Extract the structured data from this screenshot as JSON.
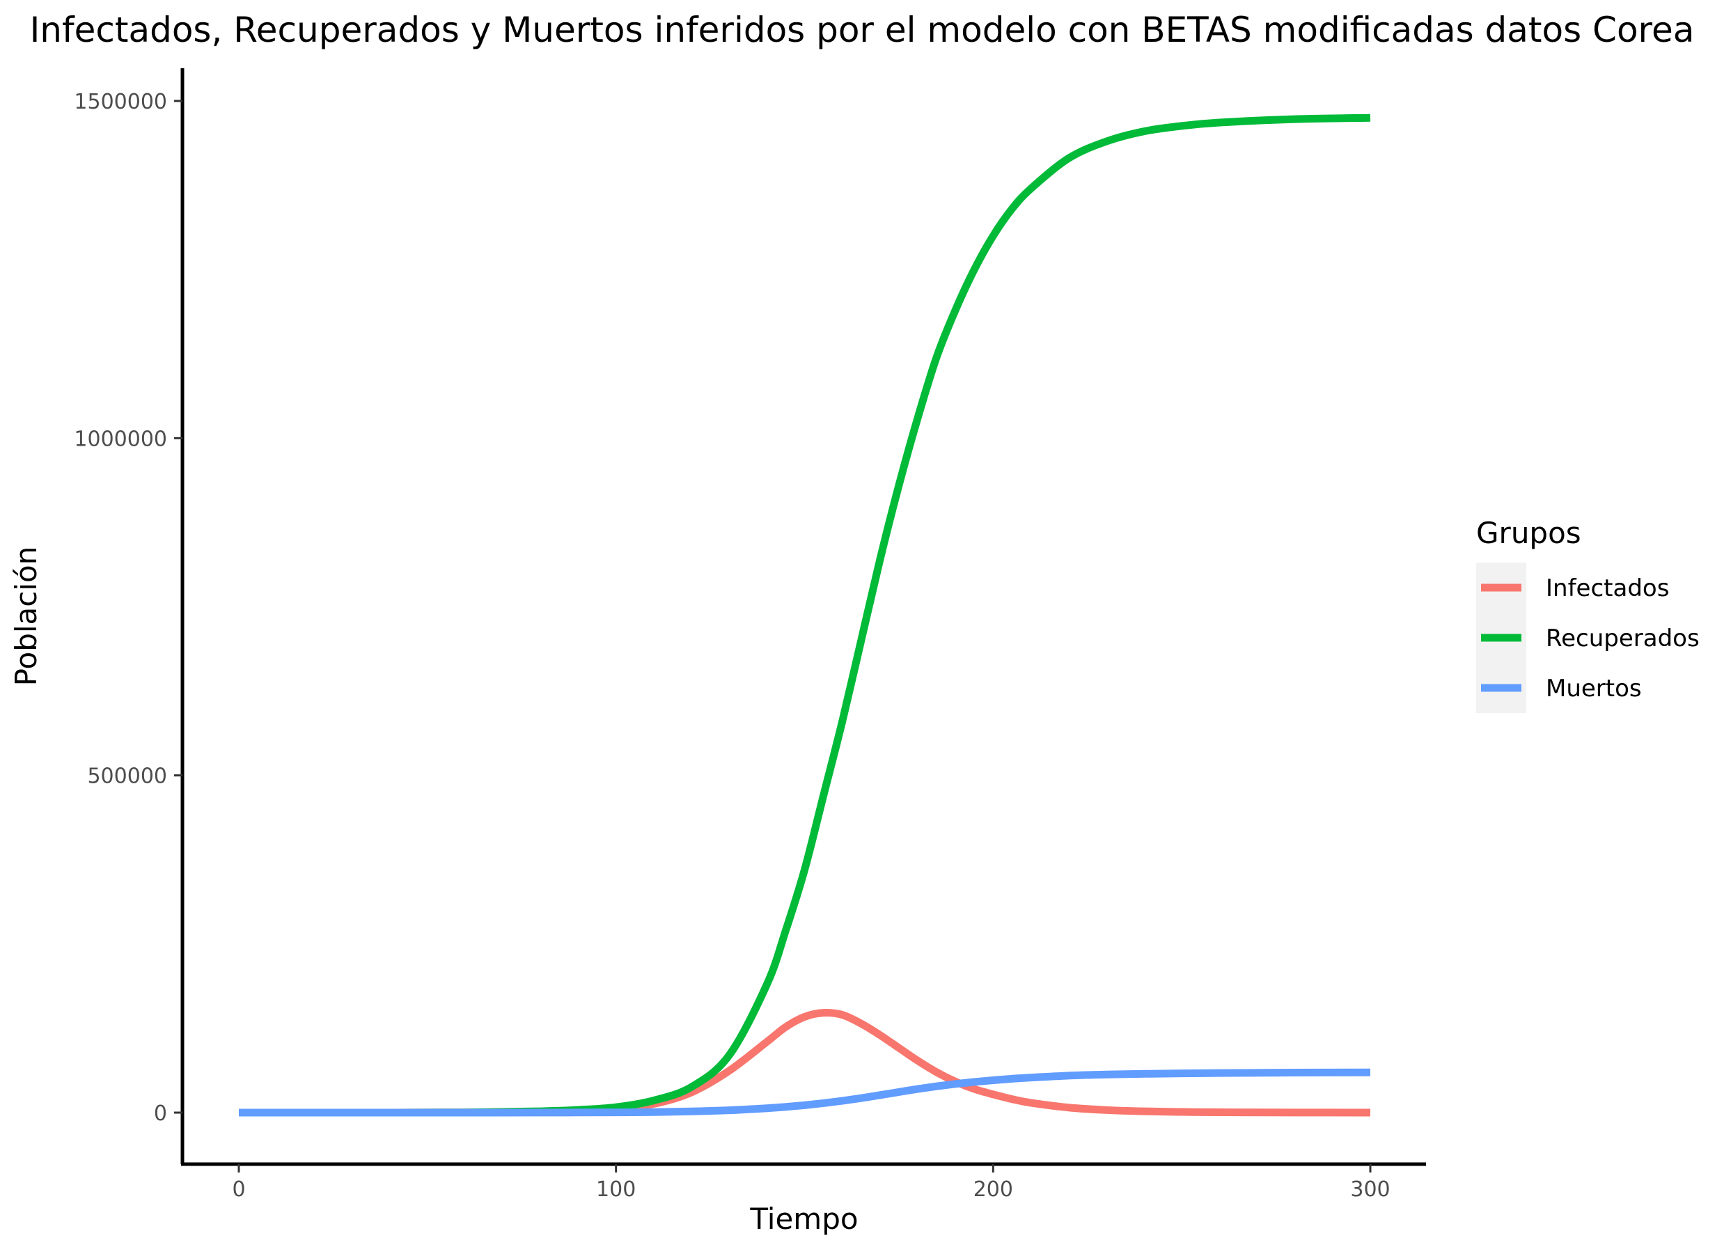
{
  "chart_data": {
    "type": "line",
    "title": "Infectados, Recuperados y Muertos inferidos por el modelo con BETAS modificadas datos Corea",
    "xlabel": "Tiempo",
    "ylabel": "Población",
    "xlim": [
      0,
      300
    ],
    "ylim": [
      0,
      1500000
    ],
    "x_ticks": [
      0,
      100,
      200,
      300
    ],
    "y_ticks": [
      0,
      500000,
      1000000,
      1500000
    ],
    "x_tick_labels": [
      "0",
      "100",
      "200",
      "300"
    ],
    "y_tick_labels": [
      "0",
      "500000",
      "1000000",
      "1500000"
    ],
    "grid": false,
    "legend": {
      "title": "Grupos",
      "position": "right"
    },
    "x": [
      0,
      20,
      40,
      60,
      80,
      90,
      100,
      110,
      120,
      130,
      140,
      145,
      150,
      155,
      160,
      165,
      170,
      175,
      180,
      185,
      190,
      195,
      200,
      205,
      210,
      220,
      230,
      240,
      250,
      260,
      280,
      300
    ],
    "series": [
      {
        "name": "Infectados",
        "color": "#F8766D",
        "values": [
          0,
          0,
          0,
          300,
          1500,
          3000,
          6500,
          13000,
          30000,
          62000,
          105000,
          127000,
          142000,
          148000,
          145000,
          132000,
          115000,
          96000,
          77000,
          60000,
          46000,
          35000,
          27000,
          20000,
          14500,
          7500,
          3800,
          1900,
          1000,
          500,
          150,
          50
        ]
      },
      {
        "name": "Recuperados",
        "color": "#00BA38",
        "values": [
          0,
          0,
          0,
          300,
          2000,
          4000,
          8000,
          18000,
          38000,
          85000,
          190000,
          270000,
          360000,
          470000,
          580000,
          700000,
          820000,
          930000,
          1030000,
          1120000,
          1190000,
          1250000,
          1300000,
          1340000,
          1370000,
          1415000,
          1440000,
          1455000,
          1463000,
          1468000,
          1473000,
          1475000
        ]
      },
      {
        "name": "Muertos",
        "color": "#619CFF",
        "values": [
          0,
          0,
          0,
          0,
          100,
          200,
          400,
          800,
          1800,
          3500,
          6500,
          8500,
          11000,
          14000,
          17500,
          21500,
          26000,
          30500,
          35000,
          39000,
          42500,
          45500,
          48000,
          50200,
          52000,
          54800,
          56500,
          57500,
          58200,
          58700,
          59300,
          59600
        ]
      }
    ]
  }
}
